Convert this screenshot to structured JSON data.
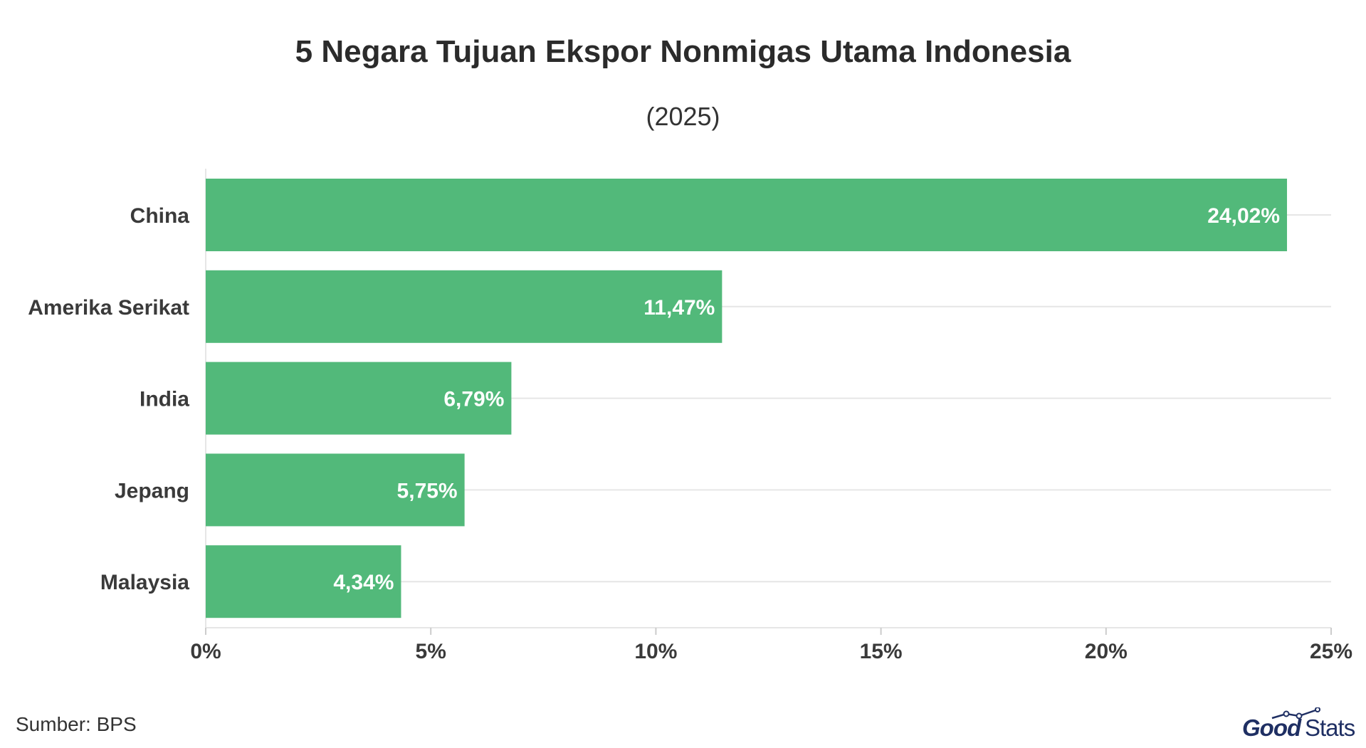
{
  "chart_data": {
    "type": "bar",
    "orientation": "horizontal",
    "title": "5 Negara Tujuan Ekspor Nonmigas Utama Indonesia",
    "subtitle": "(2025)",
    "categories": [
      "China",
      "Amerika Serikat",
      "India",
      "Jepang",
      "Malaysia"
    ],
    "values": [
      24.02,
      11.47,
      6.79,
      5.75,
      4.34
    ],
    "value_labels": [
      "24,02%",
      "11,47%",
      "6,79%",
      "5,75%",
      "4,34%"
    ],
    "xlim": [
      0,
      25
    ],
    "x_ticks": [
      0,
      5,
      10,
      15,
      20,
      25
    ],
    "x_tick_labels": [
      "0%",
      "5%",
      "10%",
      "15%",
      "20%",
      "25%"
    ],
    "grid": true,
    "bar_color": "#52b97a"
  },
  "footer": {
    "source": "Sumber: BPS",
    "logo_good": "Good",
    "logo_stats": "Stats",
    "logo_color": "#1f2f63"
  }
}
